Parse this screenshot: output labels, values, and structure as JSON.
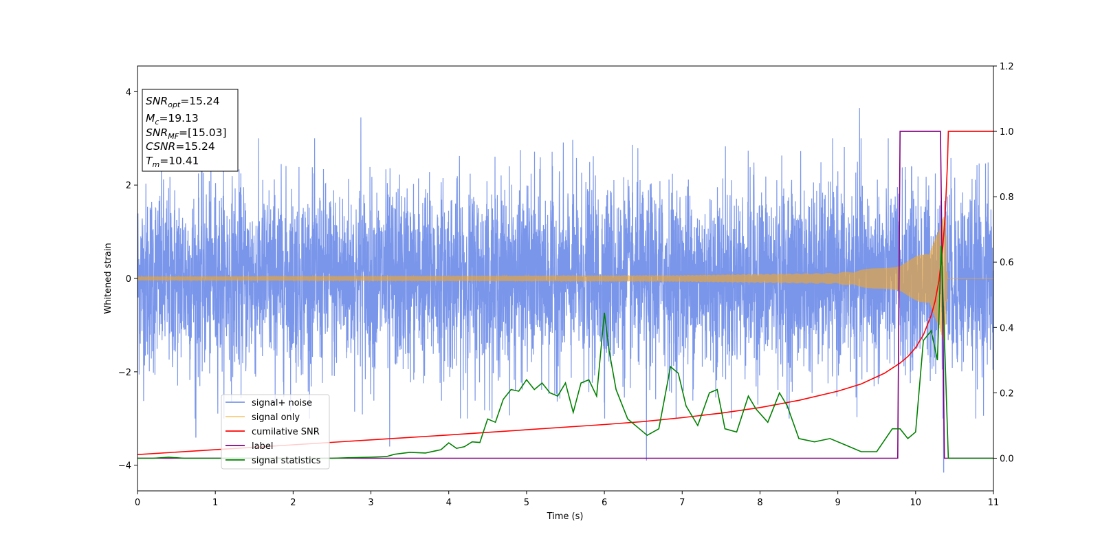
{
  "chart_data": {
    "type": "line",
    "title": "",
    "xlabel": "Time (s)",
    "ylabel": "Whitened strain",
    "xlim": [
      0,
      11
    ],
    "ylim_left": [
      -4.55,
      4.55
    ],
    "ylim_right": [
      -0.1,
      1.2
    ],
    "x_ticks": [
      "0",
      "1",
      "2",
      "3",
      "4",
      "5",
      "6",
      "7",
      "8",
      "9",
      "10",
      "11"
    ],
    "y_left_ticks": [
      "−4",
      "−2",
      "0",
      "2",
      "4"
    ],
    "y_right_ticks": [
      "0.0",
      "0.2",
      "0.4",
      "0.6",
      "0.8",
      "1.0",
      "1.2"
    ],
    "grid": false,
    "legend_position": "lower-left",
    "info_box": {
      "position": "top-left",
      "lines": [
        {
          "sym": "SNR",
          "sub": "opt",
          "val": "=15.24"
        },
        {
          "sym": "M",
          "sub": "c",
          "val": "=19.13"
        },
        {
          "sym": "SNR",
          "sub": "MF",
          "val": "=[15.03]"
        },
        {
          "sym": "CSNR",
          "sub": "",
          "val": "=15.24"
        },
        {
          "sym": "T",
          "sub": "m",
          "val": "=10.41"
        }
      ]
    },
    "series": [
      {
        "name": "signal+ noise",
        "axis": "left",
        "color": "#4169e1",
        "noise_sigma": 1.0,
        "peaks": [
          [
            9.28,
            3.65
          ],
          [
            2.87,
            3.45
          ],
          [
            10.36,
            -4.15
          ],
          [
            6.54,
            -3.9
          ],
          [
            0.75,
            -3.4
          ],
          [
            3.24,
            -3.6
          ]
        ]
      },
      {
        "name": "signal only",
        "axis": "left",
        "color": "#f5a623",
        "envelope": [
          [
            0,
            0.04
          ],
          [
            7,
            0.07
          ],
          [
            9,
            0.12
          ],
          [
            9.8,
            0.3
          ],
          [
            10.1,
            0.55
          ],
          [
            10.3,
            1.0
          ],
          [
            10.38,
            1.6
          ],
          [
            10.41,
            0.0
          ]
        ]
      },
      {
        "name": "cumilative SNR",
        "axis": "right",
        "color": "#ff0000",
        "x": [
          0,
          1,
          2,
          3,
          4,
          5,
          6,
          6.5,
          7,
          7.5,
          8,
          8.5,
          9,
          9.3,
          9.6,
          9.8,
          9.9,
          10.0,
          10.1,
          10.2,
          10.25,
          10.3,
          10.35,
          10.38,
          10.41,
          10.42,
          11.0
        ],
        "y": [
          0.011,
          0.026,
          0.041,
          0.056,
          0.071,
          0.087,
          0.103,
          0.112,
          0.124,
          0.138,
          0.155,
          0.177,
          0.205,
          0.227,
          0.26,
          0.291,
          0.311,
          0.338,
          0.377,
          0.437,
          0.48,
          0.544,
          0.647,
          0.745,
          0.905,
          1.0,
          1.0
        ]
      },
      {
        "name": "label",
        "axis": "right",
        "color": "#800080",
        "x": [
          0,
          9.77,
          9.8,
          10.32,
          10.37,
          10.41,
          11.0
        ],
        "y": [
          0.0,
          0.0,
          1.0,
          1.0,
          0.0,
          0.0,
          0.0
        ]
      },
      {
        "name": "signal statistics",
        "axis": "right",
        "color": "#008000",
        "x": [
          0,
          0.2,
          0.4,
          0.6,
          1.0,
          1.5,
          2.0,
          2.5,
          2.8,
          3.0,
          3.2,
          3.3,
          3.5,
          3.7,
          3.9,
          4.0,
          4.1,
          4.2,
          4.3,
          4.4,
          4.5,
          4.6,
          4.7,
          4.8,
          4.9,
          5.0,
          5.1,
          5.2,
          5.3,
          5.4,
          5.5,
          5.6,
          5.7,
          5.8,
          5.9,
          6.0,
          6.06,
          6.15,
          6.3,
          6.45,
          6.55,
          6.7,
          6.85,
          6.95,
          7.05,
          7.2,
          7.35,
          7.45,
          7.55,
          7.7,
          7.85,
          7.95,
          8.1,
          8.25,
          8.35,
          8.5,
          8.7,
          8.9,
          9.1,
          9.3,
          9.5,
          9.7,
          9.8,
          9.9,
          10.0,
          10.1,
          10.2,
          10.28,
          10.33,
          10.38,
          10.42,
          11.0
        ],
        "y": [
          0.0,
          0.0,
          0.003,
          0.0,
          0.0,
          0.0,
          0.0,
          0.0,
          0.002,
          0.003,
          0.005,
          0.012,
          0.018,
          0.016,
          0.026,
          0.047,
          0.03,
          0.035,
          0.05,
          0.048,
          0.12,
          0.11,
          0.18,
          0.21,
          0.205,
          0.24,
          0.21,
          0.23,
          0.2,
          0.19,
          0.23,
          0.14,
          0.23,
          0.24,
          0.19,
          0.445,
          0.33,
          0.21,
          0.12,
          0.09,
          0.07,
          0.09,
          0.28,
          0.26,
          0.16,
          0.1,
          0.2,
          0.21,
          0.09,
          0.08,
          0.19,
          0.15,
          0.11,
          0.2,
          0.16,
          0.06,
          0.05,
          0.06,
          0.04,
          0.02,
          0.02,
          0.09,
          0.09,
          0.06,
          0.08,
          0.36,
          0.39,
          0.3,
          0.65,
          0.3,
          0.0,
          0.0
        ]
      }
    ]
  }
}
